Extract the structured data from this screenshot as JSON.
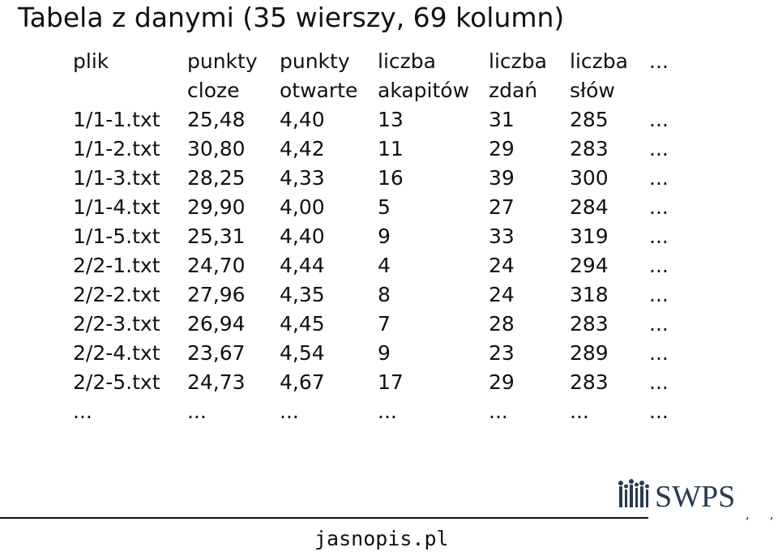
{
  "title": "Tabela z danymi (35 wierszy, 69 kolumn)",
  "table": {
    "headers": [
      [
        "plik",
        ""
      ],
      [
        "punkty",
        "cloze"
      ],
      [
        "punkty",
        "otwarte"
      ],
      [
        "liczba",
        "akapitów"
      ],
      [
        "liczba",
        "zdań"
      ],
      [
        "liczba",
        "słów"
      ],
      [
        "...",
        ""
      ]
    ],
    "rows": [
      [
        "1/1-1.txt",
        "25,48",
        "4,40",
        "13",
        "31",
        "285",
        "..."
      ],
      [
        "1/1-2.txt",
        "30,80",
        "4,42",
        "11",
        "29",
        "283",
        "..."
      ],
      [
        "1/1-3.txt",
        "28,25",
        "4,33",
        "16",
        "39",
        "300",
        "..."
      ],
      [
        "1/1-4.txt",
        "29,90",
        "4,00",
        "5",
        "27",
        "284",
        "..."
      ],
      [
        "1/1-5.txt",
        "25,31",
        "4,40",
        "9",
        "33",
        "319",
        "..."
      ],
      [
        "2/2-1.txt",
        "24,70",
        "4,44",
        "4",
        "24",
        "294",
        "..."
      ],
      [
        "2/2-2.txt",
        "27,96",
        "4,35",
        "8",
        "24",
        "318",
        "..."
      ],
      [
        "2/2-3.txt",
        "26,94",
        "4,45",
        "7",
        "28",
        "283",
        "..."
      ],
      [
        "2/2-4.txt",
        "23,67",
        "4,54",
        "9",
        "23",
        "289",
        "..."
      ],
      [
        "2/2-5.txt",
        "24,73",
        "4,67",
        "17",
        "29",
        "283",
        "..."
      ],
      [
        "...",
        "...",
        "...",
        "...",
        "...",
        "...",
        "..."
      ]
    ]
  },
  "logo": {
    "text": "SWPS",
    "color": "#2a3b4f"
  },
  "footer": {
    "site": "jasnopis.pl"
  }
}
